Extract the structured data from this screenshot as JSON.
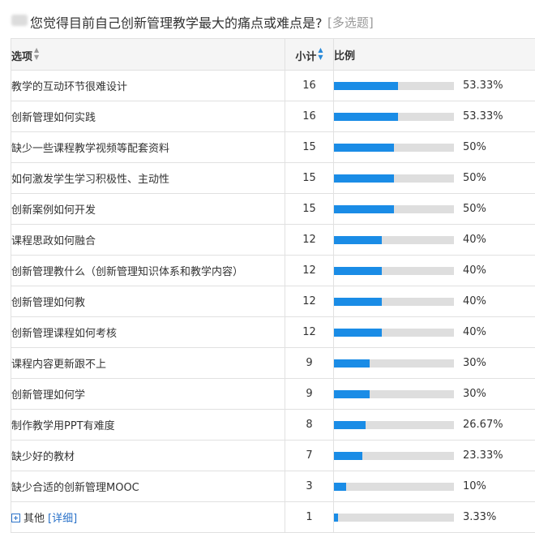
{
  "question": {
    "title": "您觉得目前自己创新管理教学最大的痛点或难点是?",
    "type_label": "[多选题]"
  },
  "table": {
    "headers": {
      "option": "选项",
      "count": "小计",
      "ratio": "比例"
    },
    "rows": [
      {
        "option": "教学的互动环节很难设计",
        "count": "16",
        "ratio": "53.33%",
        "value": 53.33
      },
      {
        "option": "创新管理如何实践",
        "count": "16",
        "ratio": "53.33%",
        "value": 53.33
      },
      {
        "option": "缺少一些课程教学视频等配套资料",
        "count": "15",
        "ratio": "50%",
        "value": 50
      },
      {
        "option": "如何激发学生学习积极性、主动性",
        "count": "15",
        "ratio": "50%",
        "value": 50
      },
      {
        "option": "创新案例如何开发",
        "count": "15",
        "ratio": "50%",
        "value": 50
      },
      {
        "option": "课程思政如何融合",
        "count": "12",
        "ratio": "40%",
        "value": 40
      },
      {
        "option": "创新管理教什么（创新管理知识体系和教学内容）",
        "count": "12",
        "ratio": "40%",
        "value": 40
      },
      {
        "option": "创新管理如何教",
        "count": "12",
        "ratio": "40%",
        "value": 40
      },
      {
        "option": "创新管理课程如何考核",
        "count": "12",
        "ratio": "40%",
        "value": 40
      },
      {
        "option": "课程内容更新跟不上",
        "count": "9",
        "ratio": "30%",
        "value": 30
      },
      {
        "option": "创新管理如何学",
        "count": "9",
        "ratio": "30%",
        "value": 30
      },
      {
        "option": "制作教学用PPT有难度",
        "count": "8",
        "ratio": "26.67%",
        "value": 26.67
      },
      {
        "option": "缺少好的教材",
        "count": "7",
        "ratio": "23.33%",
        "value": 23.33
      },
      {
        "option": "缺少合适的创新管理MOOC",
        "count": "3",
        "ratio": "10%",
        "value": 10
      }
    ],
    "other": {
      "option": "其他",
      "detail_link": "[详细]",
      "count": "1",
      "ratio": "3.33%",
      "value": 3.33
    }
  },
  "colors": {
    "bar_fill": "#1a8ce6",
    "bar_track": "#dedede",
    "link": "#2a72c9"
  },
  "icons": {
    "sort": "sort-arrows-icon",
    "expand": "plus-square-icon"
  }
}
